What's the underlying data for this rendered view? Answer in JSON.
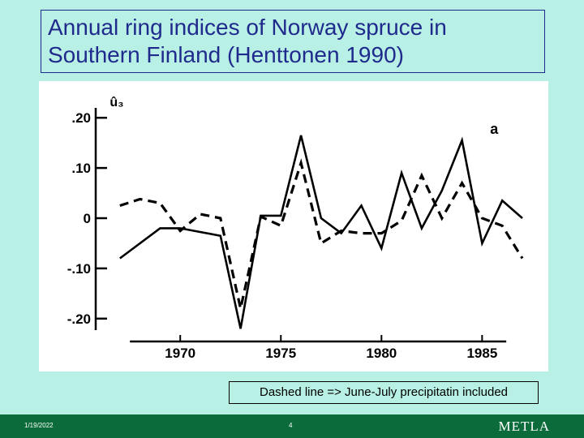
{
  "slide": {
    "title_lines": [
      "Annual ring indices of Norway spruce in",
      "Southern Finland (Henttonen 1990)"
    ],
    "caption": "Dashed line => June-July precipitatin included",
    "footer": {
      "date": "1/19/2022",
      "page": "4",
      "logo": "METLA"
    }
  },
  "colors": {
    "background": "#b8f0e6",
    "title": "#1f2a8c",
    "footer": "#0b6b3a",
    "plot_ink": "#000000"
  },
  "chart_data": {
    "type": "line",
    "ylabel": "û₃",
    "panel_label": "a",
    "xlim": [
      1965.8,
      1987
    ],
    "ylim": [
      -0.21,
      0.21
    ],
    "xticks": [
      1970,
      1975,
      1980,
      1985
    ],
    "xtick_labels": [
      "1970",
      "1975",
      "1980",
      "1985"
    ],
    "yticks": [
      0.2,
      0.1,
      0,
      -0.1,
      -0.2
    ],
    "ytick_labels": [
      ".20",
      ".10",
      "0",
      "-.10",
      "-.20"
    ],
    "grid": false,
    "series": [
      {
        "style": "solid",
        "x": [
          1967,
          1969,
          1970,
          1972,
          1973,
          1974,
          1975,
          1976,
          1977,
          1978,
          1979,
          1980,
          1981,
          1982,
          1983,
          1984,
          1985,
          1986,
          1987
        ],
        "y": [
          -0.08,
          -0.02,
          -0.02,
          -0.035,
          -0.22,
          0.005,
          0.005,
          0.165,
          0.0,
          -0.03,
          0.025,
          -0.06,
          0.09,
          -0.02,
          0.055,
          0.155,
          -0.05,
          0.035,
          0.0
        ]
      },
      {
        "style": "dashed",
        "x": [
          1967,
          1968,
          1969,
          1970,
          1971,
          1972,
          1973,
          1974,
          1975,
          1976,
          1977,
          1978,
          1979,
          1980,
          1981,
          1982,
          1983,
          1984,
          1985,
          1986,
          1987
        ],
        "y": [
          0.025,
          0.038,
          0.03,
          -0.025,
          0.008,
          0.0,
          -0.18,
          0.003,
          -0.015,
          0.11,
          -0.05,
          -0.025,
          -0.03,
          -0.03,
          -0.005,
          0.085,
          0.0,
          0.07,
          0.0,
          -0.015,
          -0.08
        ]
      }
    ]
  }
}
